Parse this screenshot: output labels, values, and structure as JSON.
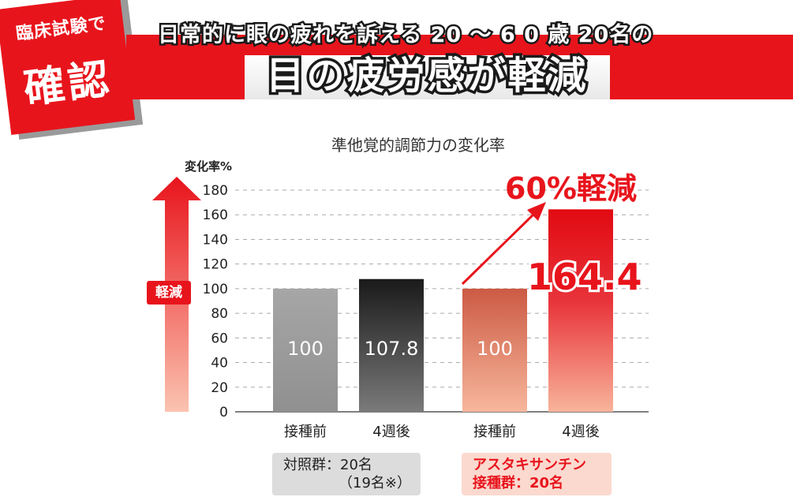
{
  "badge": {
    "line1": "臨床試験で",
    "line2": "確認"
  },
  "header": {
    "subtitle": "日常的に眼の疲れを訴える 20 〜 6 0 歳 20名の",
    "title": "目の疲労感が軽減"
  },
  "annotations": {
    "arrow_label": "軽減",
    "reduction_text": "60%軽減",
    "highlight_value": "164.4"
  },
  "groups": {
    "control": {
      "line1": "対照群：20名",
      "line2": "（19名※）"
    },
    "astaxanthin": {
      "line1": "アスタキサンチン",
      "line2": "接種群：20名"
    }
  },
  "colors": {
    "accent": "#e8141c"
  },
  "chart_data": {
    "type": "bar",
    "title": "準他覚的調節力の変化率",
    "ylabel": "変化率%",
    "xlabel": "",
    "ylim": [
      0,
      180
    ],
    "yticks": [
      0,
      20,
      40,
      60,
      80,
      100,
      120,
      140,
      160,
      180
    ],
    "grid": true,
    "categories": [
      "接種前",
      "4週後",
      "接種前",
      "4週後"
    ],
    "values": [
      100,
      107.8,
      100,
      164.4
    ],
    "value_labels": [
      "100",
      "107.8",
      "100",
      ""
    ]
  }
}
